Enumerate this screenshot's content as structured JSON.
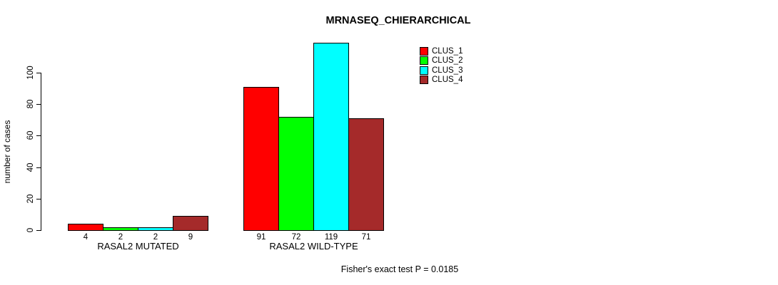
{
  "chart_data": {
    "type": "bar",
    "title": "MRNASEQ_CHIERARCHICAL",
    "ylabel": "number of cases",
    "xlabel": "",
    "yticks": [
      0,
      20,
      40,
      60,
      80,
      100
    ],
    "ylim": [
      0,
      119
    ],
    "grid": false,
    "legend_position": "top-right",
    "categories": [
      "RASAL2 MUTATED",
      "RASAL2 WILD-TYPE"
    ],
    "series": [
      {
        "name": "CLUS_1",
        "color": "#FF0000",
        "values": [
          4,
          91
        ]
      },
      {
        "name": "CLUS_2",
        "color": "#00FF00",
        "values": [
          2,
          72
        ]
      },
      {
        "name": "CLUS_3",
        "color": "#00FFFF",
        "values": [
          2,
          119
        ]
      },
      {
        "name": "CLUS_4",
        "color": "#A52A2A",
        "values": [
          9,
          71
        ]
      }
    ],
    "bar_labels": [
      [
        "4",
        "2",
        "2",
        "9"
      ],
      [
        "91",
        "72",
        "119",
        "71"
      ]
    ],
    "annotation": "Fisher's exact test P = 0.0185",
    "colors": {
      "axis": "#000000",
      "text": "#000000",
      "background": "#FFFFFF"
    }
  }
}
